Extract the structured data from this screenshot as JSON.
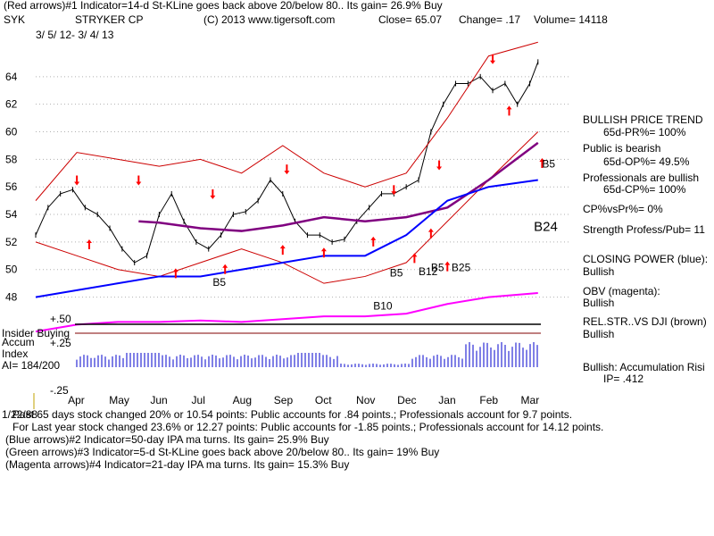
{
  "header": {
    "line1": "(Red arrows)#1 Indicator=14-d St-KLine goes back above 20/below 80.. Its gain= 26.9% Buy",
    "ticker": "SYK",
    "company": "STRYKER CP",
    "copyright": "(C) 2013 www.tigersoft.com",
    "close": "Close=  65.07",
    "change": "Change= .17",
    "volume": "Volume= 14118",
    "date_range": "3/ 5/ 12-  3/ 4/ 13"
  },
  "right_panel": {
    "trend_title": "BULLISH PRICE TREND",
    "pr": "65d-PR%= 100%",
    "public_title": "Public is bearish",
    "op": "65d-OP%= 49.5%",
    "pros_title": "Professionals are bullish",
    "cp": "65d-CP%= 100%",
    "cp_vs_pr": "CP%vsPr%=  0%",
    "strength": "Strength Profess/Pub= 11",
    "closing_power_label": "CLOSING POWER (blue):",
    "closing_power_value": "Bullish",
    "obv_label": "OBV (magenta):",
    "obv_value": "Bullish",
    "relstr_label": "REL.STR..VS DJI (brown)",
    "relstr_value": "Bullish",
    "accum_label": "Bullish: Accumulation Risi",
    "ip_label": "IP=  .412"
  },
  "indicator_panel": {
    "insider": "Insider Buying",
    "accum": "Accum",
    "index": "Index",
    "ai": "AI= 184/200",
    "plus50": "+.50",
    "plus25": "+.25",
    "minus25": "-.25"
  },
  "footer": {
    "date": "1/22/88",
    "line1": "Past 65 days stock changed  20% or  10.54 points:  Public accounts for  .84 points.;  Professionals account for  9.7 points.",
    "line2": "For Last year stock changed  23.6% or  12.27 points:  Public accounts for -1.85 points.;  Professionals account for  14.12 points.",
    "line3": "(Blue arrows)#2 Indicator=50-day IPA ma turns. Its gain= 25.9% Buy",
    "line4": "(Green arrows)#3 Indicator=5-d St-KLine goes back above 20/below 80.. Its gain= 19% Buy",
    "line5": "(Magenta arrows)#4 Indicator=21-day IPA ma turns. Its gain= 15.3% Buy"
  },
  "colors": {
    "price": "#000000",
    "bands": "#cc0000",
    "ma": "#800080",
    "closing_power": "#0000ff",
    "obv": "#ff00ff",
    "relstr": "#804000",
    "accum": "#0000cc",
    "arrows": "#ff0000"
  },
  "chart_data": {
    "type": "line",
    "title": "STRYKER CP (SYK) 3/5/12 - 3/4/13",
    "ylim": [
      47,
      66
    ],
    "y_ticks": [
      "64",
      "62",
      "60",
      "58",
      "56",
      "54",
      "52",
      "50",
      "48"
    ],
    "y_tick_values": [
      64,
      62,
      60,
      58,
      56,
      54,
      52,
      50,
      48
    ],
    "months": [
      "Apr",
      "May",
      "Jun",
      "Jul",
      "Aug",
      "Sep",
      "Oct",
      "Nov",
      "Dec",
      "Jan",
      "Feb",
      "Mar"
    ],
    "month_index": [
      1,
      2,
      3,
      4,
      5,
      6,
      7,
      8,
      9,
      10,
      11,
      12
    ],
    "x_range": [
      0,
      12.4
    ],
    "series": [
      {
        "name": "Price",
        "x": [
          0,
          0.3,
          0.6,
          0.9,
          1.2,
          1.5,
          1.8,
          2.1,
          2.4,
          2.7,
          3.0,
          3.3,
          3.6,
          3.9,
          4.2,
          4.5,
          4.8,
          5.1,
          5.4,
          5.7,
          6.0,
          6.3,
          6.6,
          6.9,
          7.2,
          7.5,
          7.8,
          8.1,
          8.4,
          8.7,
          9.0,
          9.3,
          9.6,
          9.9,
          10.2,
          10.5,
          10.8,
          11.1,
          11.4,
          11.7,
          12.0,
          12.2
        ],
        "values": [
          52.5,
          54.5,
          55.5,
          55.8,
          54.5,
          54,
          53,
          51.5,
          50.5,
          51,
          54,
          55.5,
          53.5,
          52,
          51.5,
          52.5,
          54,
          54.2,
          55,
          56.5,
          55.5,
          53.5,
          52.5,
          52.5,
          52,
          52.2,
          53.5,
          54.5,
          55.5,
          55.5,
          56,
          56.5,
          60,
          62,
          63.5,
          63.5,
          64,
          63,
          63.5,
          62,
          63.5,
          65.07
        ]
      },
      {
        "name": "Upper band",
        "x": [
          0,
          1,
          2,
          3,
          4,
          5,
          6,
          7,
          8,
          9,
          10,
          11,
          12.2
        ],
        "values": [
          55,
          58.5,
          58,
          57.5,
          58,
          57,
          59,
          57,
          56,
          57,
          61,
          65.5,
          66.5
        ]
      },
      {
        "name": "Lower band",
        "x": [
          0,
          1,
          2,
          3,
          4,
          5,
          6,
          7,
          8,
          9,
          10,
          11,
          12.2
        ],
        "values": [
          52,
          51,
          50,
          49.5,
          50.5,
          51.5,
          50.5,
          49,
          49.5,
          50.5,
          53.5,
          56.5,
          60
        ]
      },
      {
        "name": "Moving average",
        "x": [
          2.5,
          3,
          4,
          5,
          6,
          7,
          8,
          9,
          10,
          11,
          12.2
        ],
        "values": [
          53.5,
          53.4,
          53,
          52.8,
          53.2,
          53.8,
          53.5,
          53.8,
          54.5,
          56.5,
          59.2
        ]
      },
      {
        "name": "Closing Power",
        "x": [
          0,
          1,
          2,
          3,
          4,
          5,
          6,
          7,
          8,
          9,
          10,
          11,
          12.2
        ],
        "values": [
          48,
          48.5,
          49,
          49.5,
          49.5,
          50,
          50.5,
          51,
          51,
          52.5,
          55,
          56,
          56.5
        ]
      },
      {
        "name": "OBV",
        "x": [
          0,
          1,
          2,
          3,
          4,
          5,
          6,
          7,
          8,
          9,
          10,
          11,
          12.2
        ],
        "values": [
          45.5,
          46,
          46.2,
          46.2,
          46.3,
          46.2,
          46.4,
          46.6,
          46.6,
          46.8,
          47.5,
          48,
          48.3
        ]
      }
    ],
    "annotations": [
      "B5",
      "B24",
      "B5",
      "B10",
      "B5",
      "B12",
      "B5",
      "B25"
    ],
    "annotation_x": [
      12.3,
      12.1,
      4.3,
      8.2,
      8.6,
      9.3,
      9.6,
      10.1
    ],
    "annotation_y": [
      57.4,
      52.8,
      48.8,
      47.1,
      49.5,
      49.6,
      49.9,
      49.9
    ],
    "red_arrows_down_x": [
      1.0,
      2.5,
      4.3,
      6.1,
      8.7,
      9.8,
      11.1
    ],
    "red_arrows_down_y": [
      56.5,
      56.5,
      55.5,
      57.3,
      55.8,
      57.6,
      65.3
    ],
    "red_arrows_up_x": [
      1.3,
      3.4,
      4.6,
      6.0,
      7.0,
      8.2,
      9.2,
      9.6,
      10.0,
      11.5,
      12.3
    ],
    "red_arrows_up_y": [
      51.8,
      49.7,
      50.0,
      51.4,
      51.2,
      52.0,
      50.8,
      52.6,
      50.2,
      61.5,
      57.7
    ]
  }
}
